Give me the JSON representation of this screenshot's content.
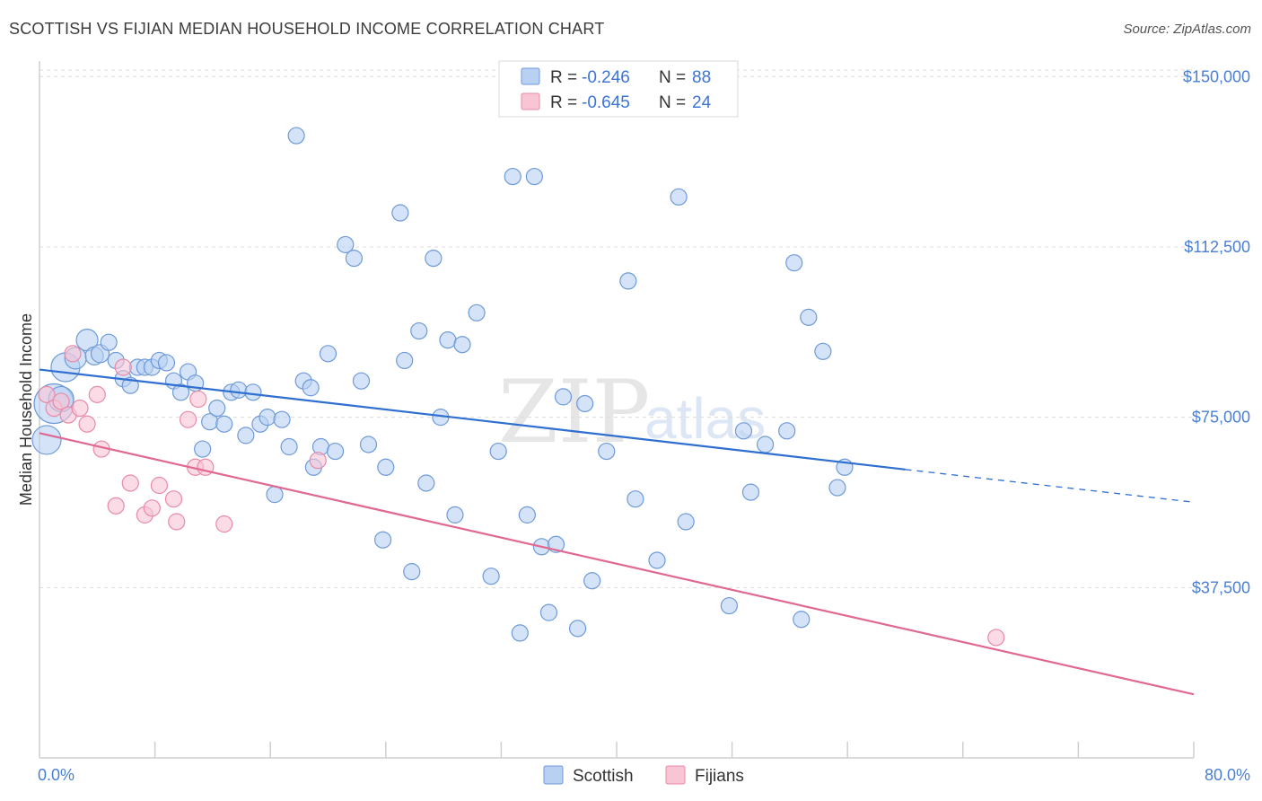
{
  "title": "SCOTTISH VS FIJIAN MEDIAN HOUSEHOLD INCOME CORRELATION CHART",
  "source": "Source: ZipAtlas.com",
  "watermark": {
    "zip": "ZIP",
    "atlas": "atlas"
  },
  "colors": {
    "scottish_fill": "#b8d0f2",
    "scottish_stroke": "#6f9ad8",
    "scottish_line": "#2f6fd1",
    "fijians_fill": "#f8c5d5",
    "fijians_stroke": "#e88aa8",
    "fijians_line": "#e06892",
    "axis_text": "#4a7fd4"
  },
  "legend": {
    "r_label": "R =",
    "n_label": "N =",
    "scottish_r": "-0.246",
    "scottish_n": "88",
    "fijians_r": "-0.645",
    "fijians_n": "24"
  },
  "chart_data": {
    "type": "scatter",
    "title": "SCOTTISH VS FIJIAN MEDIAN HOUSEHOLD INCOME CORRELATION CHART",
    "xlabel": "",
    "ylabel": "Median Household Income",
    "xlim": [
      0,
      80
    ],
    "ylim": [
      0,
      155000
    ],
    "x_tick_labels": [
      "0.0%",
      "80.0%"
    ],
    "y_ticks": [
      37500,
      75000,
      112500,
      150000
    ],
    "y_tick_labels": [
      "$37,500",
      "$75,000",
      "$112,500",
      "$150,000"
    ],
    "series": [
      {
        "name": "Scottish",
        "trend": {
          "x0": 0,
          "y0": 85500,
          "x1": 60,
          "y1": 63500,
          "dash_to_x": 80,
          "dash_to_y": 56300
        },
        "points": [
          [
            0.5,
            70000,
            16
          ],
          [
            1.0,
            78000,
            22
          ],
          [
            1.5,
            79000,
            14
          ],
          [
            1.8,
            86000,
            16
          ],
          [
            2.5,
            88000,
            12
          ],
          [
            3.3,
            92000,
            12
          ],
          [
            3.8,
            88500,
            10
          ],
          [
            4.2,
            89000,
            10
          ],
          [
            4.8,
            91500,
            9
          ],
          [
            5.3,
            87500,
            9
          ],
          [
            5.8,
            83500,
            9
          ],
          [
            6.3,
            82000,
            9
          ],
          [
            6.8,
            86000,
            9
          ],
          [
            7.3,
            86000,
            9
          ],
          [
            7.8,
            86000,
            9
          ],
          [
            8.3,
            87500,
            9
          ],
          [
            8.8,
            87000,
            9
          ],
          [
            9.3,
            83000,
            9
          ],
          [
            9.8,
            80500,
            9
          ],
          [
            10.3,
            85000,
            9
          ],
          [
            10.8,
            82500,
            9
          ],
          [
            11.3,
            68000,
            9
          ],
          [
            11.8,
            74000,
            9
          ],
          [
            12.3,
            77000,
            9
          ],
          [
            12.8,
            73500,
            9
          ],
          [
            13.3,
            80500,
            9
          ],
          [
            13.8,
            81000,
            9
          ],
          [
            14.3,
            71000,
            9
          ],
          [
            14.8,
            80500,
            9
          ],
          [
            15.3,
            73500,
            9
          ],
          [
            15.8,
            75000,
            9
          ],
          [
            16.3,
            58000,
            9
          ],
          [
            16.8,
            74500,
            9
          ],
          [
            17.3,
            68500,
            9
          ],
          [
            17.8,
            137000,
            9
          ],
          [
            18.3,
            83000,
            9
          ],
          [
            18.8,
            81500,
            9
          ],
          [
            19.0,
            64000,
            9
          ],
          [
            19.5,
            68500,
            9
          ],
          [
            20.0,
            89000,
            9
          ],
          [
            20.5,
            67500,
            9
          ],
          [
            21.2,
            113000,
            9
          ],
          [
            21.8,
            110000,
            9
          ],
          [
            22.3,
            83000,
            9
          ],
          [
            22.8,
            69000,
            9
          ],
          [
            23.8,
            48000,
            9
          ],
          [
            24.0,
            64000,
            9
          ],
          [
            25.0,
            120000,
            9
          ],
          [
            25.3,
            87500,
            9
          ],
          [
            25.8,
            41000,
            9
          ],
          [
            26.3,
            94000,
            9
          ],
          [
            26.8,
            60500,
            9
          ],
          [
            27.3,
            110000,
            9
          ],
          [
            27.8,
            75000,
            9
          ],
          [
            28.3,
            92000,
            9
          ],
          [
            28.8,
            53500,
            9
          ],
          [
            29.3,
            91000,
            9
          ],
          [
            30.3,
            98000,
            9
          ],
          [
            31.3,
            40000,
            9
          ],
          [
            31.8,
            67500,
            9
          ],
          [
            32.8,
            128000,
            9
          ],
          [
            33.3,
            27500,
            9
          ],
          [
            33.8,
            53500,
            9
          ],
          [
            34.3,
            128000,
            9
          ],
          [
            34.8,
            46500,
            9
          ],
          [
            35.3,
            32000,
            9
          ],
          [
            35.8,
            47000,
            9
          ],
          [
            36.3,
            79500,
            9
          ],
          [
            37.3,
            28500,
            9
          ],
          [
            37.8,
            78000,
            9
          ],
          [
            38.3,
            39000,
            9
          ],
          [
            39.3,
            67500,
            9
          ],
          [
            40.8,
            105000,
            9
          ],
          [
            41.3,
            57000,
            9
          ],
          [
            42.8,
            43500,
            9
          ],
          [
            44.3,
            123500,
            9
          ],
          [
            44.8,
            52000,
            9
          ],
          [
            47.8,
            33500,
            9
          ],
          [
            48.8,
            72000,
            9
          ],
          [
            49.3,
            58500,
            9
          ],
          [
            50.3,
            69000,
            9
          ],
          [
            51.8,
            72000,
            9
          ],
          [
            52.3,
            109000,
            9
          ],
          [
            52.8,
            30500,
            9
          ],
          [
            53.3,
            97000,
            9
          ],
          [
            54.3,
            89500,
            9
          ],
          [
            55.3,
            59500,
            9
          ],
          [
            55.8,
            64000,
            9
          ]
        ]
      },
      {
        "name": "Fijians",
        "trend": {
          "x0": 0,
          "y0": 71500,
          "x1": 80,
          "y1": 14000
        },
        "points": [
          [
            0.5,
            80000,
            9
          ],
          [
            1.0,
            77000,
            9
          ],
          [
            1.5,
            78500,
            9
          ],
          [
            2.0,
            75500,
            9
          ],
          [
            2.3,
            89000,
            9
          ],
          [
            2.8,
            77000,
            9
          ],
          [
            3.3,
            73500,
            9
          ],
          [
            4.0,
            80000,
            9
          ],
          [
            4.3,
            68000,
            9
          ],
          [
            5.3,
            55500,
            9
          ],
          [
            5.8,
            86000,
            9
          ],
          [
            6.3,
            60500,
            9
          ],
          [
            7.3,
            53500,
            9
          ],
          [
            7.8,
            55000,
            9
          ],
          [
            8.3,
            60000,
            9
          ],
          [
            9.3,
            57000,
            9
          ],
          [
            9.5,
            52000,
            9
          ],
          [
            10.3,
            74500,
            9
          ],
          [
            10.8,
            64000,
            9
          ],
          [
            11.0,
            79000,
            9
          ],
          [
            11.5,
            64000,
            9
          ],
          [
            12.8,
            51500,
            9
          ],
          [
            19.3,
            65500,
            9
          ],
          [
            66.3,
            26500,
            9
          ]
        ]
      }
    ]
  }
}
